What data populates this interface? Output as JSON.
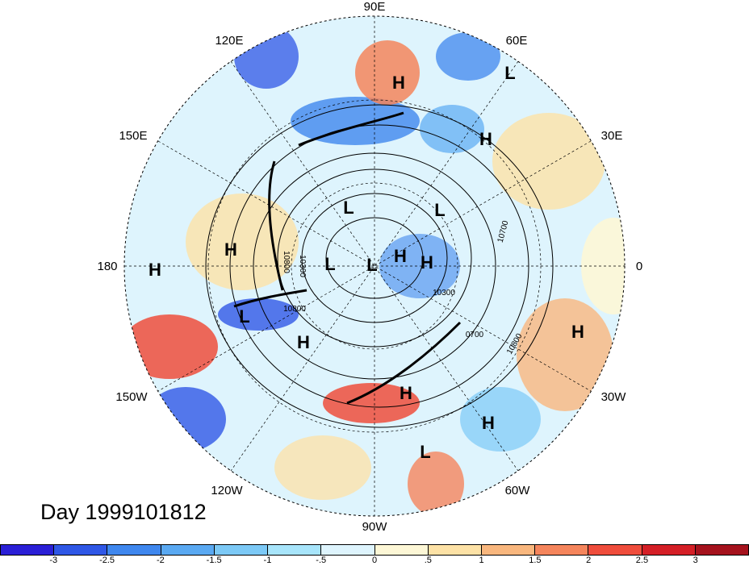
{
  "map": {
    "longitude_labels": {
      "top": "90E",
      "top_left": "120E",
      "top_right": "60E",
      "upper_left": "150E",
      "upper_right": "30E",
      "left": "180",
      "right": "0",
      "lower_left": "150W",
      "lower_right": "30W",
      "bottom_left": "120W",
      "bottom_right": "60W",
      "bottom": "90W"
    },
    "pressure_labels": [
      {
        "letter": "H"
      },
      {
        "letter": "L"
      },
      {
        "letter": "H"
      },
      {
        "letter": "L"
      },
      {
        "letter": "L"
      },
      {
        "letter": "H"
      },
      {
        "letter": "H"
      },
      {
        "letter": "L"
      },
      {
        "letter": "L"
      },
      {
        "letter": "H"
      },
      {
        "letter": "H"
      },
      {
        "letter": "L"
      },
      {
        "letter": "H"
      },
      {
        "letter": "H"
      },
      {
        "letter": "H"
      },
      {
        "letter": "H"
      },
      {
        "letter": "L"
      }
    ],
    "contour_labels": [
      "10700",
      "10300",
      "0700",
      "10800",
      "10800",
      "10800",
      "10300"
    ]
  },
  "title": "Day 1999101812",
  "colorbar": {
    "colors": [
      "#2a1fd6",
      "#2f57e6",
      "#3f87ee",
      "#5aa9f2",
      "#7cc9f6",
      "#a8e5fb",
      "#def4fd",
      "#fdf7d6",
      "#fde2a6",
      "#f9b77e",
      "#f5855c",
      "#ef4d3c",
      "#d41f26",
      "#a5121d"
    ],
    "tick_labels": [
      "-3",
      "-2.5",
      "-2",
      "-1.5",
      "-1",
      "-.5",
      "0",
      ".5",
      "1",
      "1.5",
      "2",
      "2.5",
      "3"
    ]
  }
}
